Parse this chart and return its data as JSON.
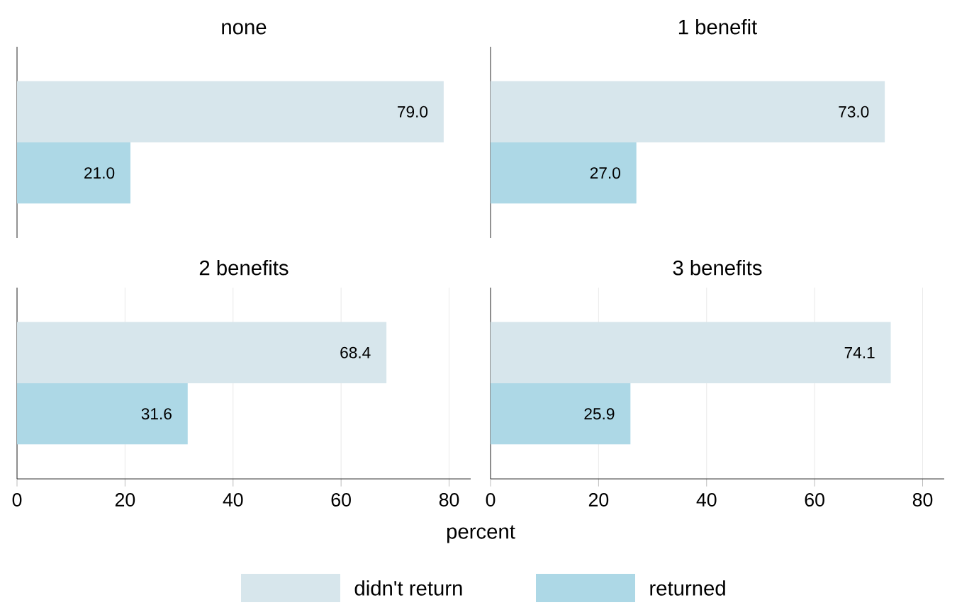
{
  "chart_data": [
    {
      "type": "bar",
      "orientation": "horizontal",
      "title": "none",
      "categories": [
        null
      ],
      "xticks": [
        0,
        20,
        40,
        60,
        80
      ],
      "grid": "x",
      "tick_labels": false,
      "legend": "bottom",
      "series": [
        {
          "name": "didn't return",
          "color": "#d7e6ec",
          "values": [
            79.0
          ],
          "value_labels": [
            "79.0"
          ]
        },
        {
          "name": "returned",
          "color": "#add8e6",
          "values": [
            21.0
          ],
          "value_labels": [
            "21.0"
          ]
        }
      ]
    },
    {
      "type": "bar",
      "orientation": "horizontal",
      "title": "1 benefit",
      "categories": [
        null
      ],
      "xticks": [
        0,
        20,
        40,
        60,
        80
      ],
      "grid": "x",
      "tick_labels": false,
      "series": [
        {
          "color": "#d7e6ec",
          "values": [
            73.0
          ],
          "value_labels": [
            "73.0"
          ]
        },
        {
          "color": "#add8e6",
          "values": [
            27.0
          ],
          "value_labels": [
            "27.0"
          ]
        }
      ]
    },
    {
      "type": "bar",
      "orientation": "horizontal",
      "title": "2 benefits",
      "xlabel": "percent",
      "categories": [
        null
      ],
      "xlim": [
        0,
        84
      ],
      "xticks": [
        0,
        20,
        40,
        60,
        80
      ],
      "grid": "x",
      "tick_labels": "x",
      "series": [
        {
          "color": "#d7e6ec",
          "values": [
            68.4
          ],
          "value_labels": [
            "68.4"
          ]
        },
        {
          "color": "#add8e6",
          "values": [
            31.6
          ],
          "value_labels": [
            "31.6"
          ]
        }
      ]
    },
    {
      "type": "bar",
      "orientation": "horizontal",
      "title": "3 benefits",
      "categories": [
        null
      ],
      "xlim": [
        0,
        84
      ],
      "xticks": [
        0,
        20,
        40,
        60,
        80
      ],
      "grid": "x",
      "tick_labels": "x",
      "series": [
        {
          "color": "#d7e6ec",
          "values": [
            74.1
          ],
          "value_labels": [
            "74.1"
          ]
        },
        {
          "color": "#add8e6",
          "values": [
            25.9
          ],
          "value_labels": [
            "25.9"
          ]
        }
      ]
    }
  ]
}
